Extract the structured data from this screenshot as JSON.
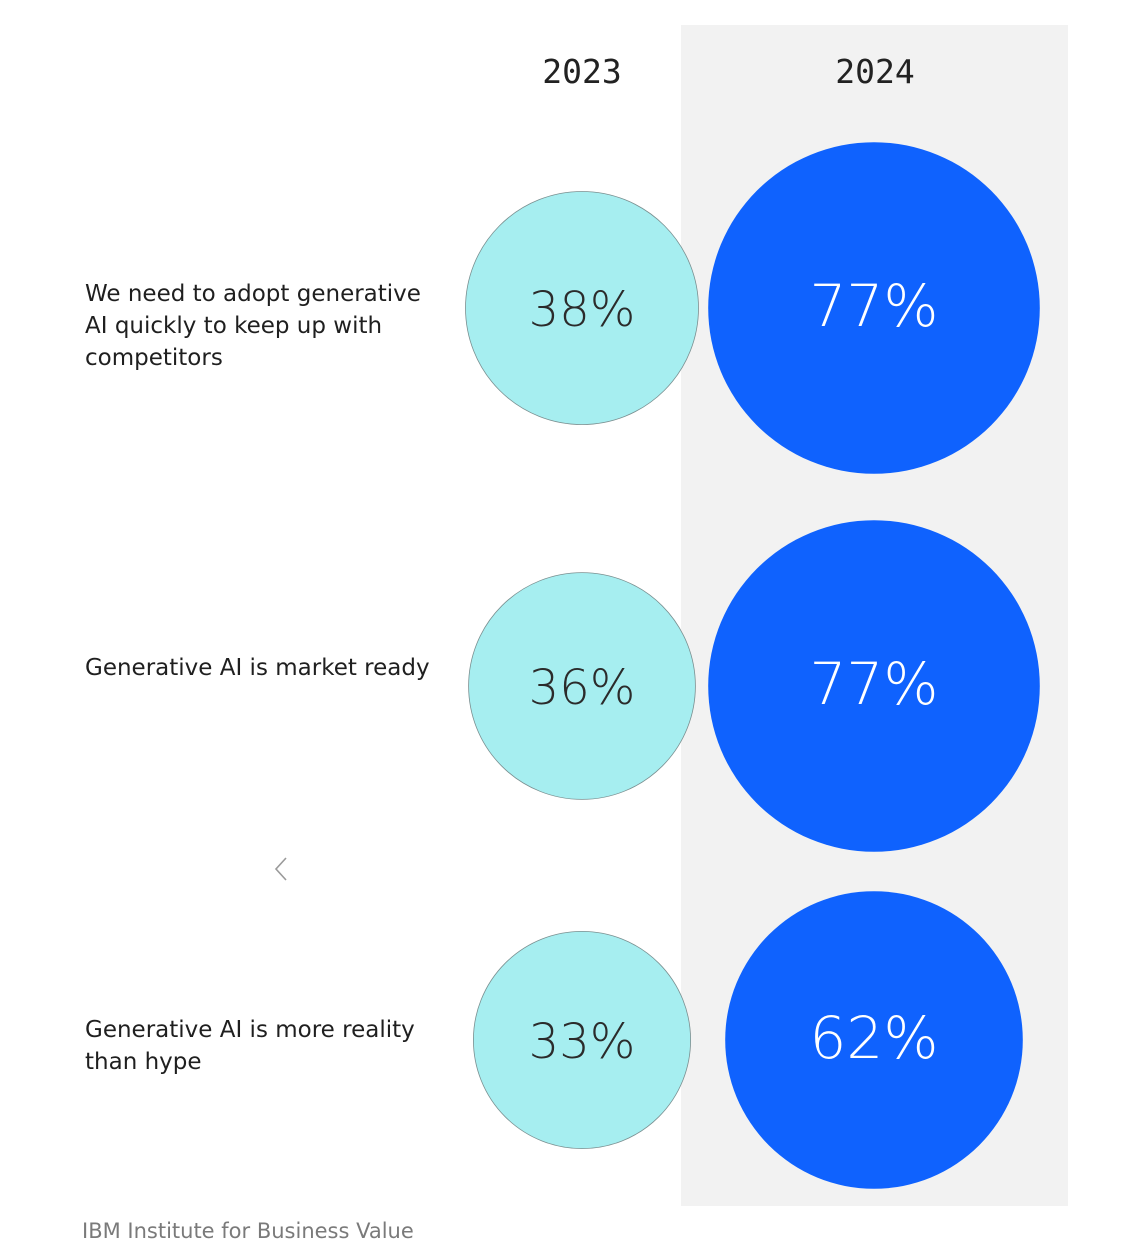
{
  "chart_data": {
    "type": "bubble",
    "series": [
      {
        "name": "2023",
        "values": [
          38,
          36,
          33
        ],
        "color": "#a6eef0",
        "text_color": "#2b2b2b"
      },
      {
        "name": "2024",
        "values": [
          77,
          77,
          62
        ],
        "color": "#0f62fe",
        "text_color": "#ffffff"
      }
    ],
    "categories": [
      "We need to adopt generative AI quickly to keep up with competitors",
      "Generative AI is market ready",
      "Generative AI is more reality than hype"
    ],
    "value_suffix": "%",
    "highlighted_series": "2024",
    "highlight_background": "#f2f2f2"
  },
  "source": "IBM Institute for Business Value",
  "nav": {
    "back_icon": "chevron-left-icon"
  }
}
